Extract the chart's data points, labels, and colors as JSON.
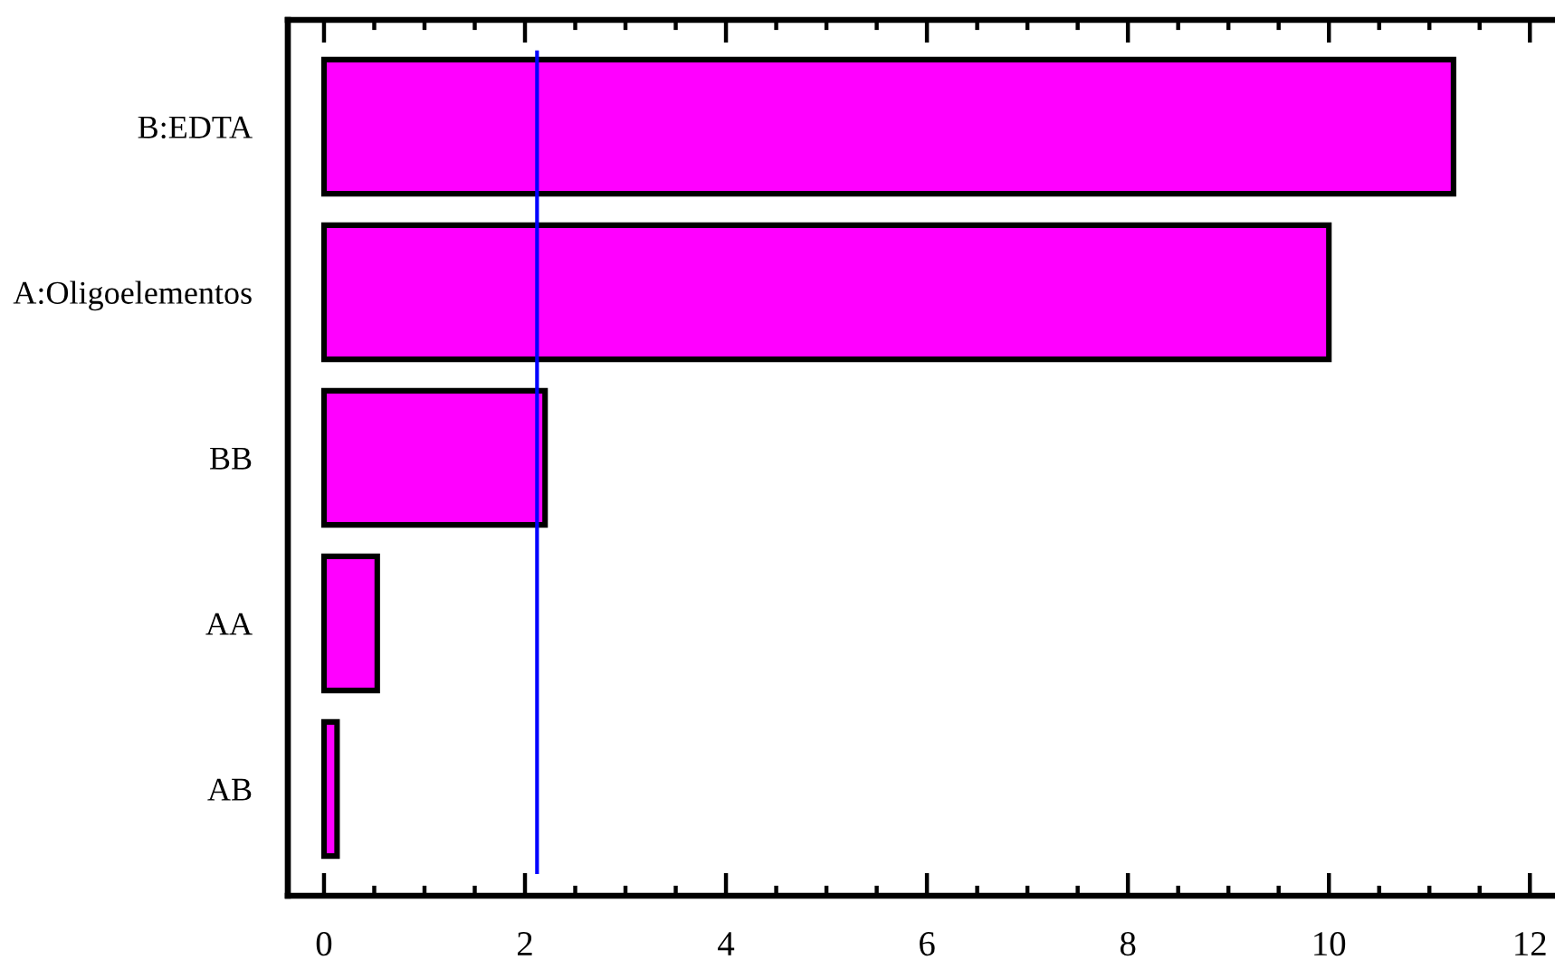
{
  "chart_data": {
    "type": "bar",
    "orientation": "horizontal",
    "categories": [
      "B:EDTA",
      "A:Oligoelementos",
      "BB",
      "AA",
      "AB"
    ],
    "values": [
      11.24,
      10.0,
      2.2,
      0.53,
      0.13
    ],
    "color": "#ff00ff",
    "xlim": [
      -0.36,
      12.25
    ],
    "xticks": [
      0,
      {
        "value": 0.5,
        "label": null
      },
      {
        "value": 1,
        "label": null
      },
      {
        "value": 1.5,
        "label": null
      },
      2,
      {
        "value": 2.5,
        "label": null
      },
      {
        "value": 3,
        "label": null
      },
      {
        "value": 3.5,
        "label": null
      },
      4,
      {
        "value": 4.5,
        "label": null
      },
      {
        "value": 5,
        "label": null
      },
      {
        "value": 5.5,
        "label": null
      },
      6,
      {
        "value": 6.5,
        "label": null
      },
      {
        "value": 7,
        "label": null
      },
      {
        "value": 7.5,
        "label": null
      },
      8,
      {
        "value": 8.5,
        "label": null
      },
      {
        "value": 9,
        "label": null
      },
      {
        "value": 9.5,
        "label": null
      },
      10,
      {
        "value": 10.5,
        "label": null
      },
      {
        "value": 11,
        "label": null
      },
      {
        "value": 11.5,
        "label": null
      },
      12
    ],
    "ref_lines": [
      {
        "axis": "x",
        "value": 2.12,
        "color": "#0000ff"
      }
    ],
    "grid": false
  }
}
